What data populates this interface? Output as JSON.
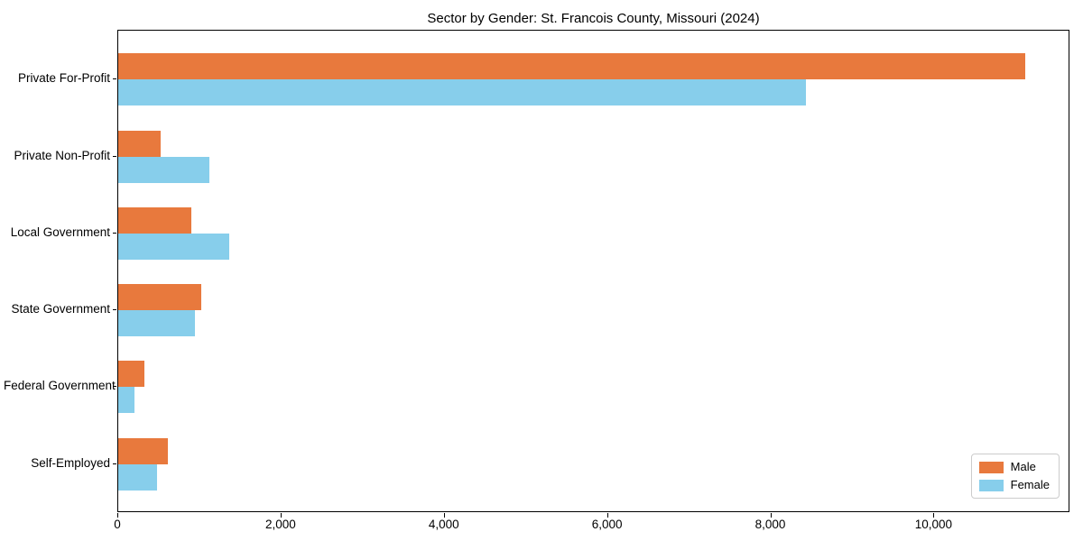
{
  "figure": {
    "background": "#ffffff"
  },
  "chart_data": {
    "type": "bar",
    "orientation": "horizontal",
    "title": "Sector by Gender: St. Francois County, Missouri (2024)",
    "categories": [
      "Private For-Profit",
      "Private Non-Profit",
      "Local Government",
      "State Government",
      "Federal Government",
      "Self-Employed"
    ],
    "series": [
      {
        "name": "Male",
        "color": "#e8793d",
        "values": [
          11110,
          520,
          900,
          1020,
          320,
          610
        ]
      },
      {
        "name": "Female",
        "color": "#87ceeb",
        "values": [
          8430,
          1120,
          1360,
          940,
          200,
          470
        ]
      }
    ],
    "xlabel": "",
    "ylabel": "",
    "xlim": [
      0,
      11665
    ],
    "xticks": [
      0,
      2000,
      4000,
      6000,
      8000,
      10000
    ],
    "xtick_labels": [
      "0",
      "2,000",
      "4,000",
      "6,000",
      "8,000",
      "10,000"
    ],
    "grid": false,
    "axis_color": "#000000",
    "legend": {
      "position": "lower right",
      "entries": [
        "Male",
        "Female"
      ]
    }
  }
}
